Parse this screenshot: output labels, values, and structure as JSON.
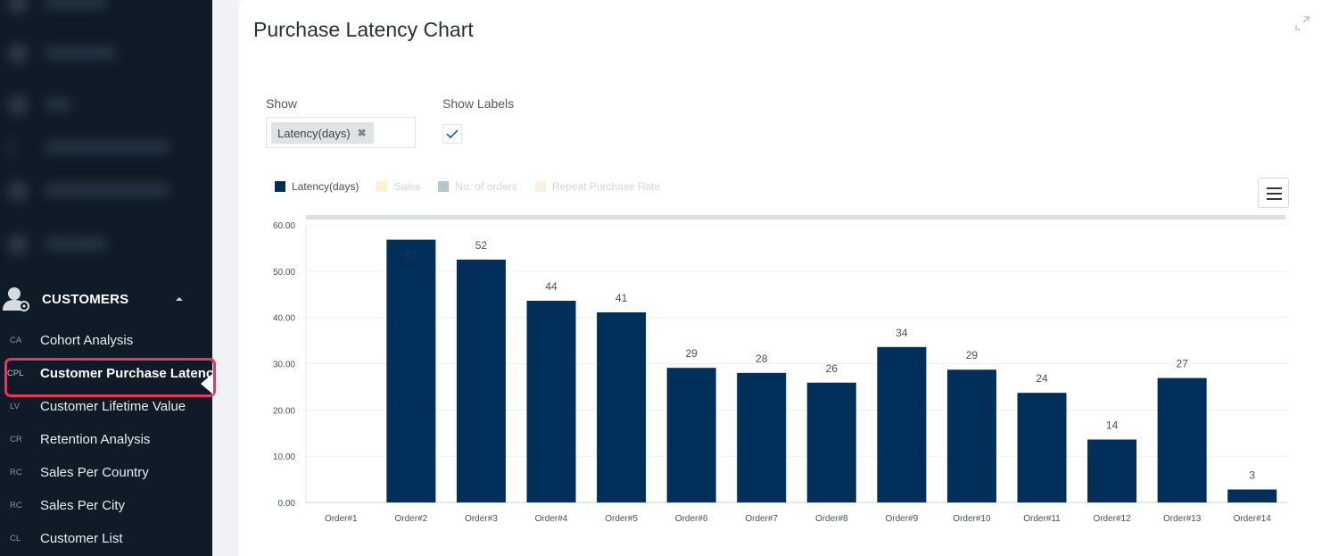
{
  "sidebar": {
    "section_title": "CUSTOMERS",
    "items": [
      {
        "abbr": "CA",
        "label": "Cohort Analysis"
      },
      {
        "abbr": "CPL",
        "label": "Customer Purchase Latency",
        "active": true
      },
      {
        "abbr": "LV",
        "label": "Customer Lifetime Value"
      },
      {
        "abbr": "CR",
        "label": "Retention Analysis"
      },
      {
        "abbr": "RC",
        "label": "Sales Per Country"
      },
      {
        "abbr": "RC",
        "label": "Sales Per City"
      },
      {
        "abbr": "CL",
        "label": "Customer List"
      }
    ]
  },
  "panel": {
    "title": "Purchase Latency Chart",
    "show_label": "Show",
    "show_tag": "Latency(days)",
    "show_tag_remove": "✖",
    "show_labels_label": "Show Labels",
    "show_labels_checked": true
  },
  "colors": {
    "accent": "#e8365d",
    "bar": "#002f5a",
    "sidebar_bg": "#0f1b26"
  },
  "chart_data": {
    "type": "bar",
    "legend": [
      {
        "name": "Latency(days)",
        "color": "#002f5a",
        "active": true
      },
      {
        "name": "Sales",
        "color": "#fdf3c8",
        "active": false
      },
      {
        "name": "No. of orders",
        "color": "#b6c6cf",
        "active": false
      },
      {
        "name": "Repeat Purchase Rate",
        "color": "#f7f2e0",
        "active": false
      }
    ],
    "categories": [
      "Order#1",
      "Order#2",
      "Order#3",
      "Order#4",
      "Order#5",
      "Order#6",
      "Order#7",
      "Order#8",
      "Order#9",
      "Order#10",
      "Order#11",
      "Order#12",
      "Order#13",
      "Order#14"
    ],
    "values": [
      0,
      56.8,
      52.5,
      43.6,
      41.1,
      29.1,
      28.0,
      25.9,
      33.6,
      28.7,
      23.7,
      13.6,
      26.9,
      2.8
    ],
    "data_labels": [
      "",
      "57",
      "52",
      "44",
      "41",
      "29",
      "28",
      "26",
      "34",
      "29",
      "24",
      "14",
      "27",
      "3"
    ],
    "yticks": [
      "0.00",
      "10.00",
      "20.00",
      "30.00",
      "40.00",
      "50.00",
      "60.00"
    ],
    "ylim": [
      0,
      60
    ],
    "grid": true,
    "legend_position": "top-left"
  }
}
